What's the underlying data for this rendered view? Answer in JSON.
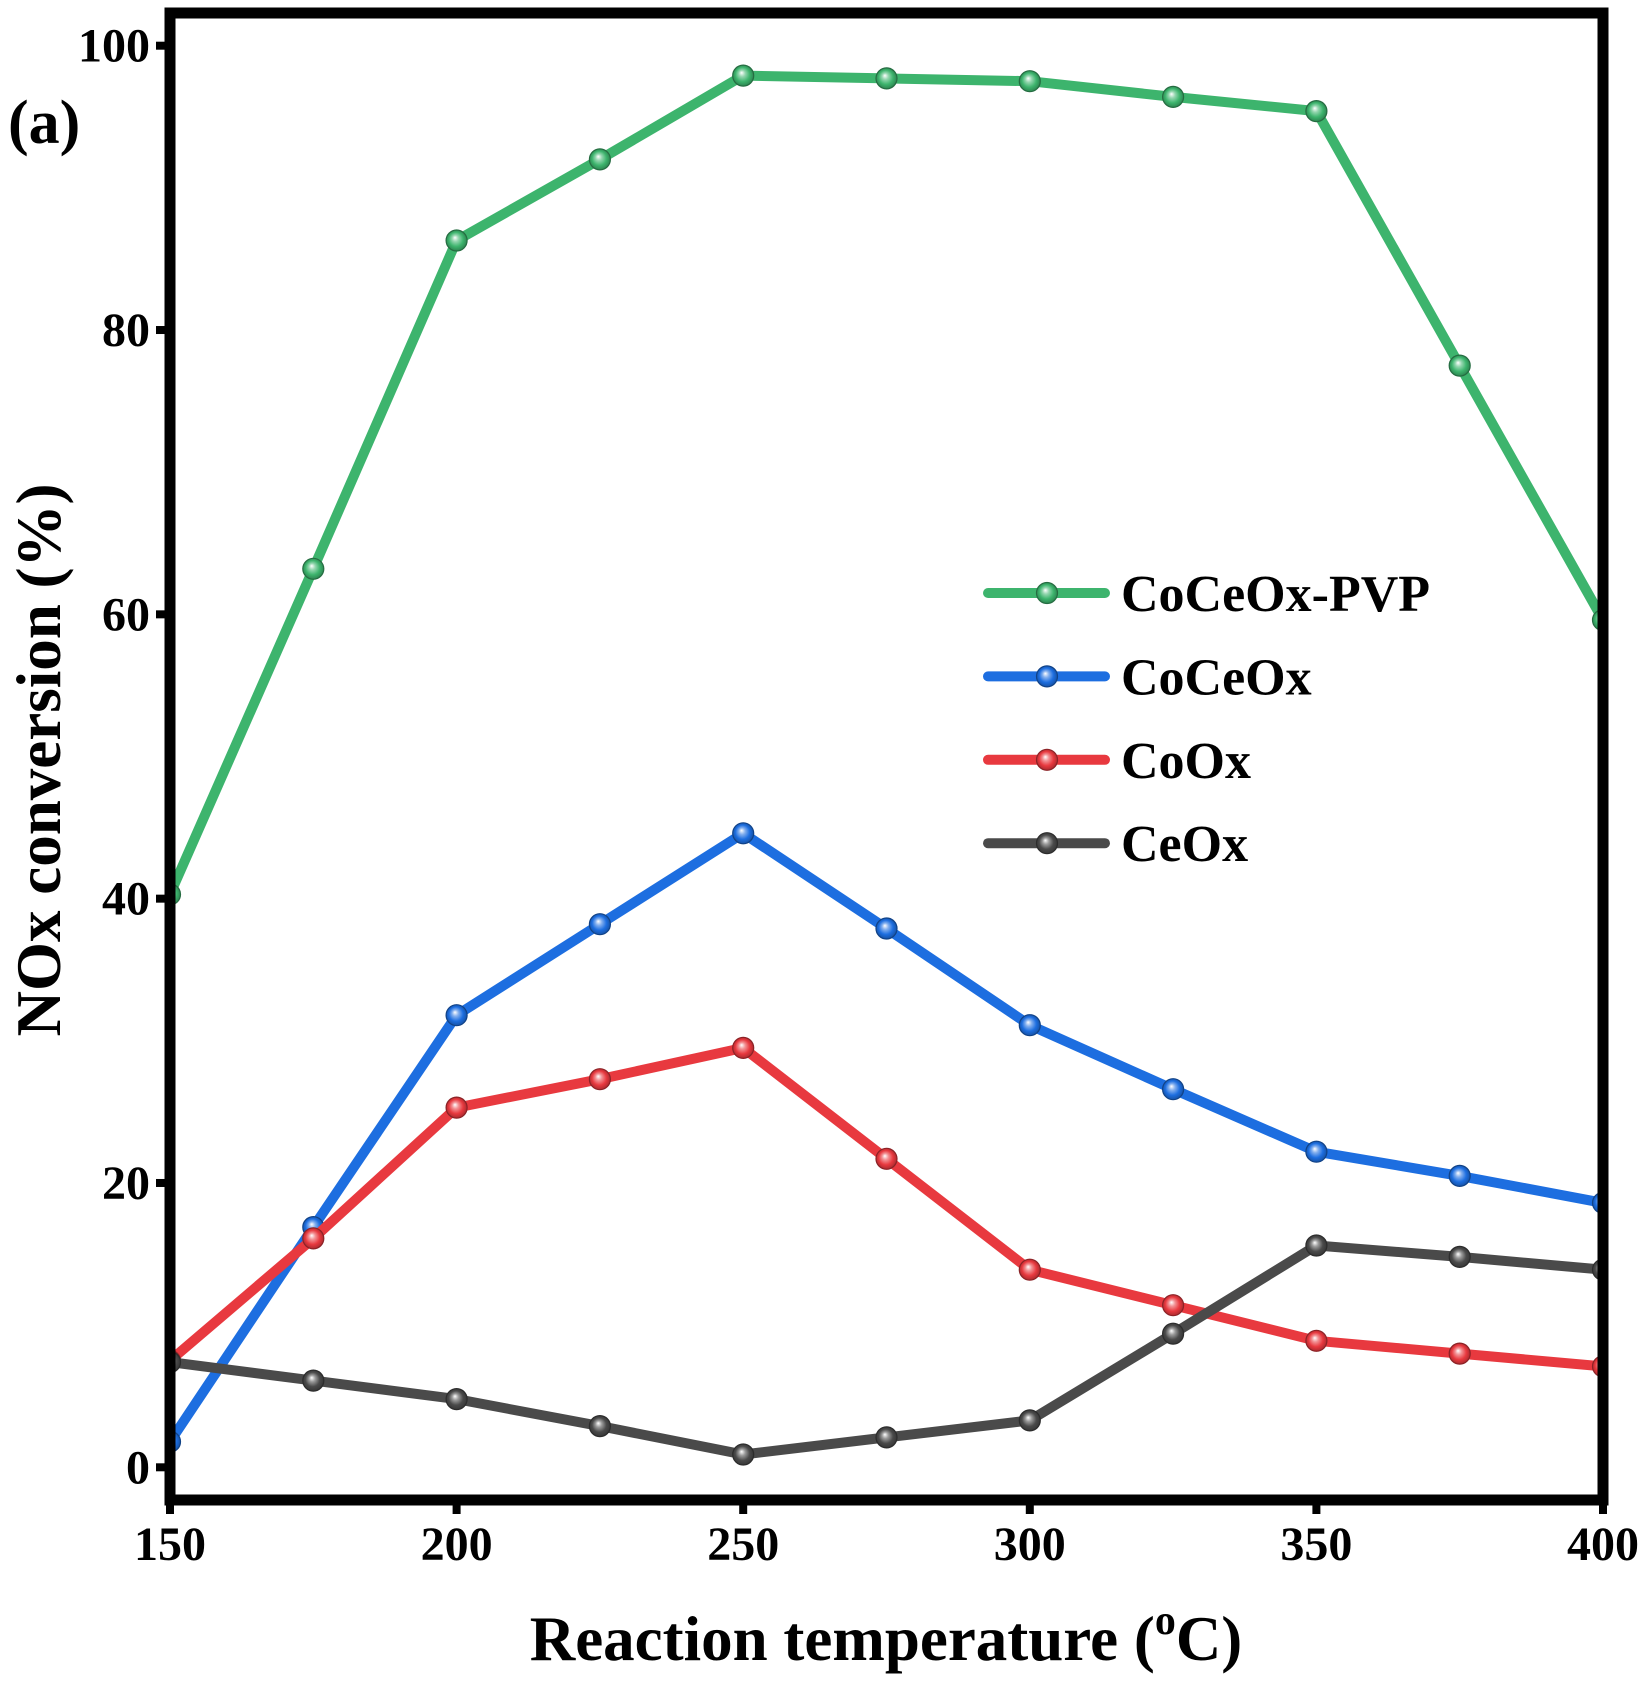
{
  "panel_label": "(a)",
  "chart_data": {
    "type": "line",
    "x": [
      150,
      175,
      200,
      225,
      250,
      275,
      300,
      325,
      350,
      375,
      400
    ],
    "series": [
      {
        "name": "CoCeOx-PVP",
        "color": "#3db46d",
        "values": [
          40.3,
          63.2,
          86.3,
          92.0,
          97.9,
          97.7,
          97.5,
          96.4,
          95.4,
          77.5,
          59.6
        ]
      },
      {
        "name": "CoCeOx",
        "color": "#1d6ee0",
        "values": [
          1.8,
          16.9,
          31.8,
          38.2,
          44.6,
          37.9,
          31.1,
          26.6,
          22.2,
          20.5,
          18.6
        ]
      },
      {
        "name": "CoOx",
        "color": "#e8393f",
        "values": [
          7.5,
          16.1,
          25.3,
          27.3,
          29.5,
          21.7,
          13.9,
          11.4,
          8.9,
          8.0,
          7.1
        ]
      },
      {
        "name": "CeOx",
        "color": "#4a4a4a",
        "values": [
          7.4,
          6.1,
          4.8,
          2.9,
          0.9,
          2.1,
          3.3,
          9.4,
          15.6,
          14.8,
          13.9
        ]
      }
    ],
    "xlabel": {
      "before": "Reaction temperature (",
      "sup": "o",
      "after": "C)"
    },
    "ylabel": "NOx conversion (%)",
    "xlim": [
      150,
      400
    ],
    "ylim": [
      -2.3,
      102.3
    ],
    "xticks": [
      150,
      200,
      250,
      300,
      350,
      400
    ],
    "yticks": [
      0,
      20,
      40,
      60,
      80,
      100
    ],
    "grid": false
  }
}
